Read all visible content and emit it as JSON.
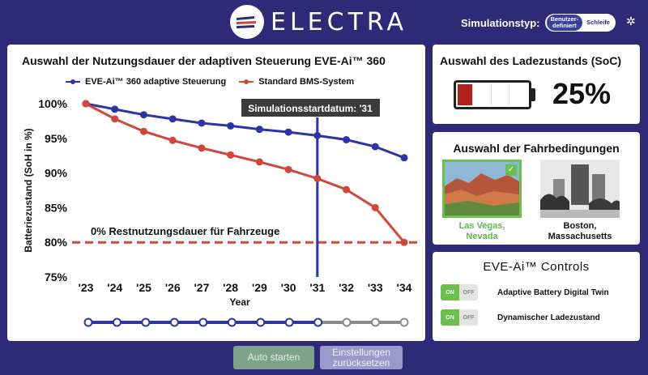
{
  "header": {
    "logo_text": "ELECTRA",
    "simtype_label": "Simulationstyp:",
    "simtype_options": [
      "Benutzer-\ndefiniert",
      "Schleife"
    ],
    "simtype_selected": "Benutzer-definiert",
    "settings_icon": "gear-icon"
  },
  "chart_panel": {
    "title": "Auswahl der Nutzungsdauer der adaptiven Steuerung EVE-Ai™ 360",
    "legend": [
      "EVE-Ai™ 360 adaptive Steuerung",
      "Standard BMS-System"
    ],
    "annotation_start": "Simulationsstartdatum: '31",
    "annotation_eol": "0% Restnutzungsdauer für Fahrzeuge"
  },
  "chart_data": {
    "type": "line",
    "x": [
      "'23",
      "'24",
      "'25",
      "'26",
      "'27",
      "'28",
      "'29",
      "'30",
      "'31",
      "'32",
      "'33",
      "'34"
    ],
    "xlabel": "Year",
    "ylabel": "Batteriezustand (SoH in %)",
    "y_ticks": [
      "100%",
      "95%",
      "90%",
      "85%",
      "80%",
      "75%"
    ],
    "ylim": [
      75,
      100
    ],
    "series": [
      {
        "name": "EVE-Ai™ 360 adaptive Steuerung",
        "color": "#2b35a8",
        "values": [
          100,
          99.2,
          98.4,
          97.8,
          97.2,
          96.8,
          96.3,
          95.9,
          95.4,
          94.8,
          93.8,
          92.2
        ]
      },
      {
        "name": "Standard BMS-System",
        "color": "#d2463a",
        "values": [
          100,
          97.8,
          96.0,
          94.7,
          93.6,
          92.6,
          91.6,
          90.5,
          89.2,
          87.6,
          85.0,
          80.0
        ]
      }
    ],
    "start_marker_x": "'31",
    "eol_level": 80,
    "timeline": {
      "total": 12,
      "filled": 9,
      "colors": {
        "filled": "#2b35a8",
        "empty": "#8a8a8a"
      }
    }
  },
  "soc_panel": {
    "title": "Auswahl des Ladezustands (SoC)",
    "value": "25%",
    "level": 0.25,
    "fill_color": "#b0201c"
  },
  "drive_panel": {
    "title": "Auswahl der Fahrbedingungen",
    "options": [
      {
        "label": "Las Vegas,\nNevada",
        "selected": true
      },
      {
        "label": "Boston,\nMassachusetts",
        "selected": false
      }
    ]
  },
  "controls_panel": {
    "title": "EVE-Ai™ Controls",
    "items": [
      {
        "label": "Adaptive Battery Digital Twin",
        "on": "ON",
        "off": "OFF"
      },
      {
        "label": "Dynamischer Ladezustand",
        "on": "ON",
        "off": "OFF"
      }
    ]
  },
  "buttons": {
    "start": "Auto starten",
    "reset": "Einstellungen\nzurücksetzen"
  }
}
